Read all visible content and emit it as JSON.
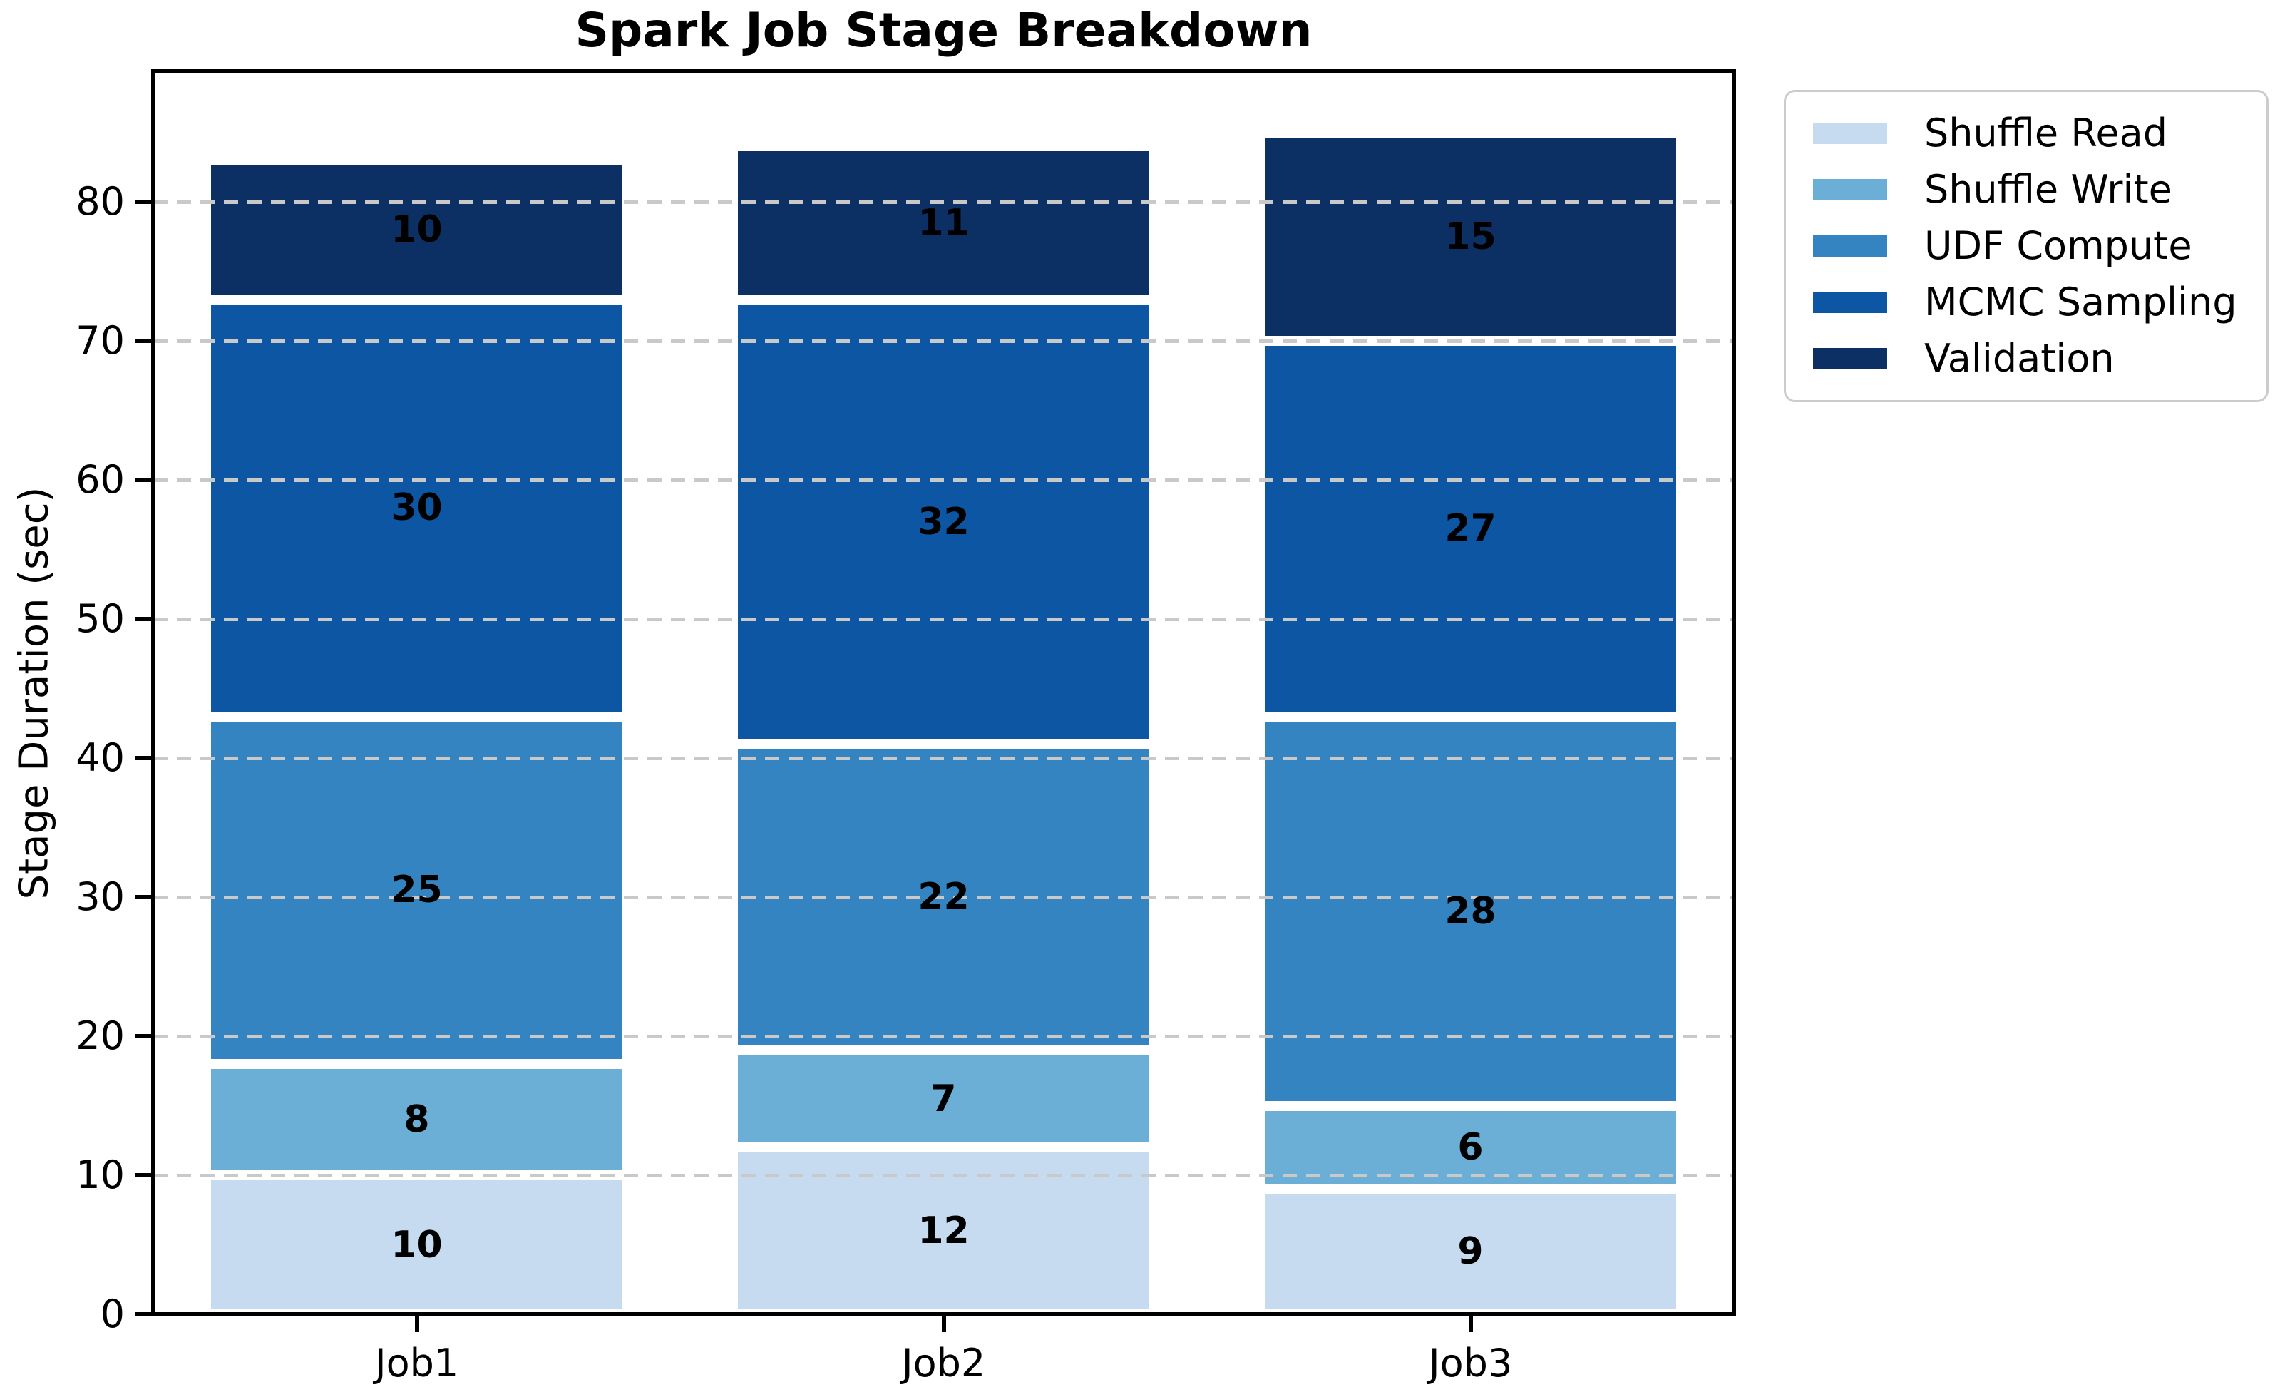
{
  "figure": {
    "title": "Spark Job Stage Breakdown",
    "ylabel": "Stage Duration (sec)"
  },
  "chart_data": {
    "type": "bar",
    "stacked": true,
    "title": "Spark Job Stage Breakdown",
    "xlabel": "",
    "ylabel": "Stage Duration (sec)",
    "categories": [
      "Job1",
      "Job2",
      "Job3"
    ],
    "series": [
      {
        "name": "Shuffle Read",
        "color": "#c6dbef",
        "values": [
          10,
          12,
          9
        ]
      },
      {
        "name": "Shuffle Write",
        "color": "#6baed6",
        "values": [
          8,
          7,
          6
        ]
      },
      {
        "name": "UDF Compute",
        "color": "#3484c1",
        "values": [
          25,
          22,
          28
        ]
      },
      {
        "name": "MCMC Sampling",
        "color": "#0c56a4",
        "values": [
          30,
          32,
          27
        ]
      },
      {
        "name": "Validation",
        "color": "#0d3064",
        "values": [
          10,
          11,
          15
        ]
      }
    ],
    "bar_totals": [
      83,
      84,
      85
    ],
    "bar_value_labels": "centered in each segment, bold black",
    "ylim": [
      0,
      89.4
    ],
    "yticks": [
      0,
      10,
      20,
      30,
      40,
      50,
      60,
      70,
      80
    ],
    "grid": "horizontal dashed, drawn above bars",
    "grid_color": "#c9c9c9",
    "bar_edge_color": "#ffffff",
    "legend_position": "upper right, outside axes",
    "legend_border_color": "#cccccc",
    "axis_color": "#000000"
  }
}
